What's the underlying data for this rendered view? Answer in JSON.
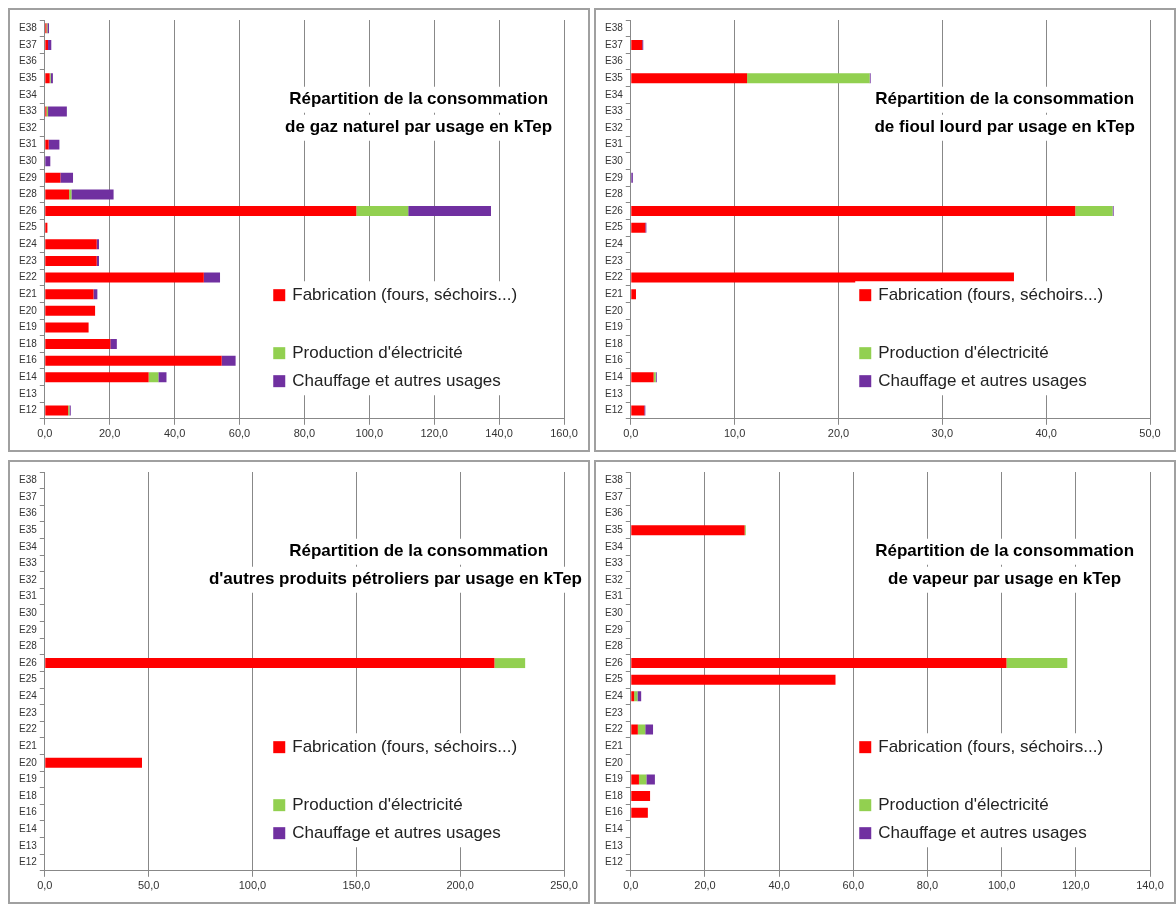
{
  "chart_data": [
    {
      "type": "bar",
      "orientation": "horizontal",
      "stacked": true,
      "grid": "x",
      "legend": "right",
      "title": "Répartition de la consommation\nde gaz naturel par usage en kTep",
      "categories": [
        "E38",
        "E37",
        "E36",
        "E35",
        "E34",
        "E33",
        "E32",
        "E31",
        "E30",
        "E29",
        "E28",
        "E26",
        "E25",
        "E24",
        "E23",
        "E22",
        "E21",
        "E20",
        "E19",
        "E18",
        "E16",
        "E14",
        "E13",
        "E12"
      ],
      "xlim": [
        0,
        160
      ],
      "xticks": [
        {
          "value": 0,
          "label": "0,0"
        },
        {
          "value": 20,
          "label": "20,0"
        },
        {
          "value": 40,
          "label": "40,0"
        },
        {
          "value": 60,
          "label": "60,0"
        },
        {
          "value": 80,
          "label": "80,0"
        },
        {
          "value": 100,
          "label": "100,0"
        },
        {
          "value": 120,
          "label": "120,0"
        },
        {
          "value": 140,
          "label": "140,0"
        },
        {
          "value": 160,
          "label": "160,0"
        }
      ],
      "series": [
        {
          "name": "Fabrication (fours, séchoirs...)",
          "color": "#ff0000",
          "values": [
            0.5,
            1,
            0,
            1.5,
            0,
            0.5,
            0,
            1.2,
            0,
            4.8,
            7.5,
            96,
            0.8,
            16,
            16,
            49,
            15,
            15.5,
            13.5,
            20.2,
            54.5,
            32,
            0,
            7.2
          ]
        },
        {
          "name": "Production d'électricité",
          "color": "#92d050",
          "values": [
            0.3,
            0,
            0,
            0.3,
            0,
            0.5,
            0,
            0,
            0,
            0,
            0.7,
            16,
            0,
            0,
            0,
            0,
            0,
            0,
            0,
            0,
            0,
            3,
            0,
            0.4
          ]
        },
        {
          "name": "Chauffage et autres usages",
          "color": "#7030a0",
          "values": [
            0.5,
            1,
            0,
            0.7,
            0,
            5.8,
            0,
            3.3,
            1.7,
            3.9,
            13,
            25.5,
            0,
            0.7,
            0.7,
            5,
            1.2,
            0,
            0,
            2,
            4.3,
            2.5,
            0,
            0.4
          ]
        }
      ]
    },
    {
      "type": "bar",
      "orientation": "horizontal",
      "stacked": true,
      "grid": "x",
      "legend": "right",
      "title": "Répartition de la consommation\nde fioul lourd par usage en kTep",
      "categories": [
        "E38",
        "E37",
        "E36",
        "E35",
        "E34",
        "E33",
        "E32",
        "E31",
        "E30",
        "E29",
        "E28",
        "E26",
        "E25",
        "E24",
        "E23",
        "E22",
        "E21",
        "E20",
        "E19",
        "E18",
        "E16",
        "E14",
        "E13",
        "E12"
      ],
      "xlim": [
        0,
        50
      ],
      "xticks": [
        {
          "value": 0,
          "label": "0,0"
        },
        {
          "value": 10,
          "label": "10,0"
        },
        {
          "value": 20,
          "label": "20,0"
        },
        {
          "value": 30,
          "label": "30,0"
        },
        {
          "value": 40,
          "label": "40,0"
        },
        {
          "value": 50,
          "label": "50,0"
        }
      ],
      "series": [
        {
          "name": "Fabrication (fours, séchoirs...)",
          "color": "#ff0000",
          "values": [
            0,
            1.1,
            0,
            11.2,
            0,
            0,
            0,
            0,
            0,
            0,
            0,
            42.8,
            1.4,
            0,
            0,
            36.9,
            0.5,
            0,
            0,
            0,
            0,
            2.2,
            0,
            1.3
          ]
        },
        {
          "name": "Production d'électricité",
          "color": "#92d050",
          "values": [
            0,
            0,
            0,
            11.8,
            0,
            0,
            0,
            0,
            0,
            0,
            0,
            3.6,
            0,
            0,
            0,
            0,
            0,
            0,
            0,
            0,
            0,
            0.2,
            0,
            0
          ]
        },
        {
          "name": "Chauffage et autres usages",
          "color": "#7030a0",
          "values": [
            0,
            0.1,
            0,
            0.1,
            0,
            0,
            0,
            0,
            0,
            0.2,
            0,
            0.1,
            0.1,
            0,
            0,
            0,
            0,
            0,
            0,
            0,
            0,
            0.1,
            0,
            0.1
          ]
        }
      ]
    },
    {
      "type": "bar",
      "orientation": "horizontal",
      "stacked": true,
      "grid": "x",
      "legend": "right",
      "title": "Répartition de la consommation\nd'autres produits pétroliers par usage en kTep",
      "categories": [
        "E38",
        "E37",
        "E36",
        "E35",
        "E34",
        "E33",
        "E32",
        "E31",
        "E30",
        "E29",
        "E28",
        "E26",
        "E25",
        "E24",
        "E23",
        "E22",
        "E21",
        "E20",
        "E19",
        "E18",
        "E16",
        "E14",
        "E13",
        "E12"
      ],
      "xlim": [
        0,
        250
      ],
      "xticks": [
        {
          "value": 0,
          "label": "0,0"
        },
        {
          "value": 50,
          "label": "50,0"
        },
        {
          "value": 100,
          "label": "100,0"
        },
        {
          "value": 150,
          "label": "150,0"
        },
        {
          "value": 200,
          "label": "200,0"
        },
        {
          "value": 250,
          "label": "250,0"
        }
      ],
      "series": [
        {
          "name": "Fabrication (fours, séchoirs...)",
          "color": "#ff0000",
          "values": [
            0,
            0,
            0,
            0,
            0,
            0,
            0,
            0,
            0,
            0,
            0,
            216.5,
            0,
            0,
            0,
            0,
            0,
            46.8,
            0,
            0,
            0,
            0,
            0,
            0
          ]
        },
        {
          "name": "Production d'électricité",
          "color": "#92d050",
          "values": [
            0,
            0,
            0,
            0,
            0,
            0,
            0,
            0,
            0,
            0,
            0,
            14.8,
            0,
            0,
            0,
            0,
            0,
            0,
            0,
            0,
            0,
            0,
            0,
            0
          ]
        },
        {
          "name": "Chauffage et autres usages",
          "color": "#7030a0",
          "values": [
            0,
            0,
            0,
            0,
            0,
            0,
            0,
            0,
            0,
            0,
            0,
            0,
            0,
            0,
            0,
            0,
            0,
            0,
            0,
            0,
            0,
            0,
            0,
            0
          ]
        }
      ]
    },
    {
      "type": "bar",
      "orientation": "horizontal",
      "stacked": true,
      "grid": "x",
      "legend": "right",
      "title": "Répartition de la consommation\nde vapeur par usage en kTep",
      "categories": [
        "E38",
        "E37",
        "E36",
        "E35",
        "E34",
        "E33",
        "E32",
        "E31",
        "E30",
        "E29",
        "E28",
        "E26",
        "E25",
        "E24",
        "E23",
        "E22",
        "E21",
        "E20",
        "E19",
        "E18",
        "E16",
        "E14",
        "E13",
        "E12"
      ],
      "xlim": [
        0,
        140
      ],
      "xticks": [
        {
          "value": 0,
          "label": "0,0"
        },
        {
          "value": 20,
          "label": "20,0"
        },
        {
          "value": 40,
          "label": "40,0"
        },
        {
          "value": 60,
          "label": "60,0"
        },
        {
          "value": 80,
          "label": "80,0"
        },
        {
          "value": 100,
          "label": "100,0"
        },
        {
          "value": 120,
          "label": "120,0"
        },
        {
          "value": 140,
          "label": "140,0"
        }
      ],
      "series": [
        {
          "name": "Fabrication (fours, séchoirs...)",
          "color": "#ff0000",
          "values": [
            0,
            0,
            0,
            30.7,
            0,
            0,
            0,
            0,
            0,
            0,
            0,
            101.3,
            55.2,
            0.9,
            0,
            1.9,
            0,
            0,
            2.2,
            5.2,
            4.6,
            0,
            0,
            0
          ]
        },
        {
          "name": "Production d'électricité",
          "color": "#92d050",
          "values": [
            0,
            0,
            0,
            0.3,
            0,
            0,
            0,
            0,
            0,
            0,
            0,
            16.4,
            0,
            0.9,
            0,
            2.0,
            0,
            0,
            2.0,
            0,
            0,
            0,
            0,
            0
          ]
        },
        {
          "name": "Chauffage et autres usages",
          "color": "#7030a0",
          "values": [
            0,
            0,
            0,
            0,
            0,
            0,
            0,
            0,
            0,
            0,
            0,
            0,
            0,
            1.0,
            0,
            2.1,
            0,
            0,
            2.3,
            0,
            0,
            0,
            0,
            0
          ]
        }
      ]
    }
  ]
}
